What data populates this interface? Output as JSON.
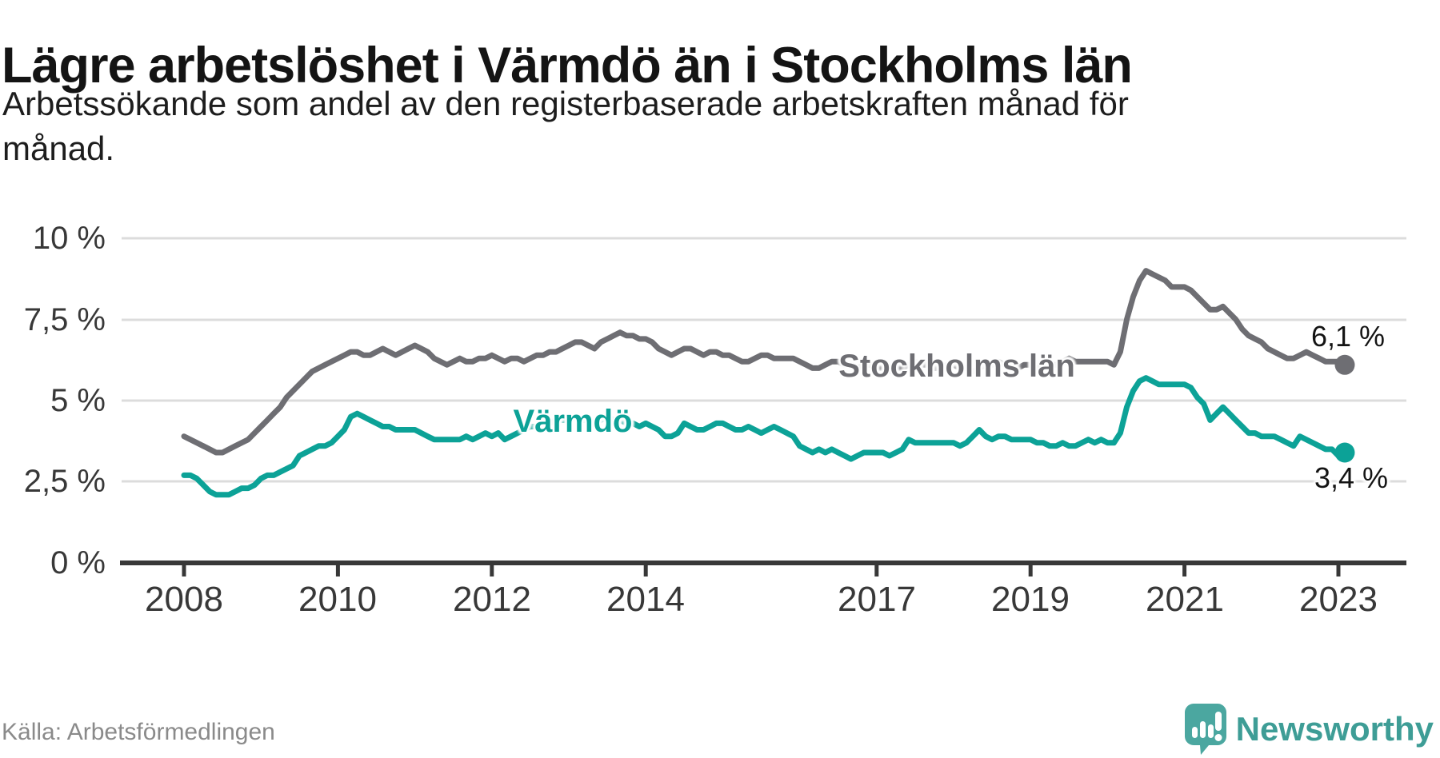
{
  "header": {
    "title": "Lägre arbetslöshet i Värmdö än i Stockholms län",
    "subtitle_lines": [
      "Arbetssökande som andel av den registerbaserade arbetskraften månad för",
      "månad."
    ]
  },
  "source": {
    "label": "Källa: Arbetsförmedlingen"
  },
  "branding": {
    "name": "Newsworthy",
    "icon": "newsworthy-logo-icon",
    "color": "#3E9D96",
    "icon_color": "#4BA7A0"
  },
  "colors": {
    "stockholms_lan": "#6E6E73",
    "varmdo": "#0CA297",
    "axis": "#383838",
    "gridline": "#DCDCDC",
    "value_label": "#141414",
    "source_text": "#8A8A8A"
  },
  "chart_data": {
    "type": "line",
    "title": "Lägre arbetslöshet i Värmdö än i Stockholms län",
    "subtitle": "Arbetssökande som andel av den registerbaserade arbetskraften månad för månad.",
    "frequency": "monthly",
    "x_start": "2008-01",
    "x_end": "2023-02",
    "xlim": [
      2008,
      2023.2
    ],
    "ylim": [
      0,
      10
    ],
    "grid": "horizontal",
    "legend": "inline-labels",
    "y_ticks": [
      {
        "label": "10 %",
        "value": 10
      },
      {
        "label": "7,5 %",
        "value": 7.5
      },
      {
        "label": "5 %",
        "value": 5
      },
      {
        "label": "2,5 %",
        "value": 2.5
      },
      {
        "label": "0 %",
        "value": 0
      }
    ],
    "x_ticks": [
      {
        "label": "2008",
        "year": 2008
      },
      {
        "label": "2010",
        "year": 2010
      },
      {
        "label": "2012",
        "year": 2012
      },
      {
        "label": "2014",
        "year": 2014
      },
      {
        "label": "2017",
        "year": 2017
      },
      {
        "label": "2019",
        "year": 2019
      },
      {
        "label": "2021",
        "year": 2021
      },
      {
        "label": "2023",
        "year": 2023
      }
    ],
    "series": [
      {
        "name": "Stockholms län",
        "color": "#6E6E73",
        "end_label": "6,1 %",
        "end_value": 6.1,
        "values": [
          3.9,
          3.8,
          3.7,
          3.6,
          3.5,
          3.4,
          3.4,
          3.5,
          3.6,
          3.7,
          3.8,
          4.0,
          4.2,
          4.4,
          4.6,
          4.8,
          5.1,
          5.3,
          5.5,
          5.7,
          5.9,
          6.0,
          6.1,
          6.2,
          6.3,
          6.4,
          6.5,
          6.5,
          6.4,
          6.4,
          6.5,
          6.6,
          6.5,
          6.4,
          6.5,
          6.6,
          6.7,
          6.6,
          6.5,
          6.3,
          6.2,
          6.1,
          6.2,
          6.3,
          6.2,
          6.2,
          6.3,
          6.3,
          6.4,
          6.3,
          6.2,
          6.3,
          6.3,
          6.2,
          6.3,
          6.4,
          6.4,
          6.5,
          6.5,
          6.6,
          6.7,
          6.8,
          6.8,
          6.7,
          6.6,
          6.8,
          6.9,
          7.0,
          7.1,
          7.0,
          7.0,
          6.9,
          6.9,
          6.8,
          6.6,
          6.5,
          6.4,
          6.5,
          6.6,
          6.6,
          6.5,
          6.4,
          6.5,
          6.5,
          6.4,
          6.4,
          6.3,
          6.2,
          6.2,
          6.3,
          6.4,
          6.4,
          6.3,
          6.3,
          6.3,
          6.3,
          6.2,
          6.1,
          6.0,
          6.0,
          6.1,
          6.2,
          6.2,
          6.1,
          6.1,
          6.0,
          6.1,
          6.1,
          6.0,
          6.0,
          5.9,
          6.0,
          6.0,
          6.1,
          6.2,
          6.1,
          6.1,
          6.0,
          6.0,
          6.1,
          6.1,
          6.0,
          6.0,
          5.9,
          6.0,
          6.1,
          6.1,
          6.2,
          6.1,
          6.0,
          6.0,
          6.1,
          6.1,
          6.0,
          6.0,
          6.1,
          6.1,
          6.2,
          6.3,
          6.2,
          6.2,
          6.2,
          6.2,
          6.2,
          6.2,
          6.1,
          6.5,
          7.5,
          8.2,
          8.7,
          9.0,
          8.9,
          8.8,
          8.7,
          8.5,
          8.5,
          8.5,
          8.4,
          8.2,
          8.0,
          7.8,
          7.8,
          7.9,
          7.7,
          7.5,
          7.2,
          7.0,
          6.9,
          6.8,
          6.6,
          6.5,
          6.4,
          6.3,
          6.3,
          6.4,
          6.5,
          6.4,
          6.3,
          6.2,
          6.2,
          6.2,
          6.1
        ]
      },
      {
        "name": "Värmdö",
        "color": "#0CA297",
        "end_label": "3,4 %",
        "end_value": 3.4,
        "values": [
          2.7,
          2.7,
          2.6,
          2.4,
          2.2,
          2.1,
          2.1,
          2.1,
          2.2,
          2.3,
          2.3,
          2.4,
          2.6,
          2.7,
          2.7,
          2.8,
          2.9,
          3.0,
          3.3,
          3.4,
          3.5,
          3.6,
          3.6,
          3.7,
          3.9,
          4.1,
          4.5,
          4.6,
          4.5,
          4.4,
          4.3,
          4.2,
          4.2,
          4.1,
          4.1,
          4.1,
          4.1,
          4.0,
          3.9,
          3.8,
          3.8,
          3.8,
          3.8,
          3.8,
          3.9,
          3.8,
          3.9,
          4.0,
          3.9,
          4.0,
          3.8,
          3.9,
          4.0,
          4.1,
          4.2,
          4.2,
          4.3,
          4.3,
          4.4,
          4.4,
          4.4,
          4.5,
          4.4,
          4.4,
          4.3,
          4.4,
          4.5,
          4.4,
          4.4,
          4.3,
          4.3,
          4.2,
          4.3,
          4.2,
          4.1,
          3.9,
          3.9,
          4.0,
          4.3,
          4.2,
          4.1,
          4.1,
          4.2,
          4.3,
          4.3,
          4.2,
          4.1,
          4.1,
          4.2,
          4.1,
          4.0,
          4.1,
          4.2,
          4.1,
          4.0,
          3.9,
          3.6,
          3.5,
          3.4,
          3.5,
          3.4,
          3.5,
          3.4,
          3.3,
          3.2,
          3.3,
          3.4,
          3.4,
          3.4,
          3.4,
          3.3,
          3.4,
          3.5,
          3.8,
          3.7,
          3.7,
          3.7,
          3.7,
          3.7,
          3.7,
          3.7,
          3.6,
          3.7,
          3.9,
          4.1,
          3.9,
          3.8,
          3.9,
          3.9,
          3.8,
          3.8,
          3.8,
          3.8,
          3.7,
          3.7,
          3.6,
          3.6,
          3.7,
          3.6,
          3.6,
          3.7,
          3.8,
          3.7,
          3.8,
          3.7,
          3.7,
          4.0,
          4.8,
          5.3,
          5.6,
          5.7,
          5.6,
          5.5,
          5.5,
          5.5,
          5.5,
          5.5,
          5.4,
          5.1,
          4.9,
          4.4,
          4.6,
          4.8,
          4.6,
          4.4,
          4.2,
          4.0,
          4.0,
          3.9,
          3.9,
          3.9,
          3.8,
          3.7,
          3.6,
          3.9,
          3.8,
          3.7,
          3.6,
          3.5,
          3.5,
          3.3,
          3.4
        ]
      }
    ]
  }
}
